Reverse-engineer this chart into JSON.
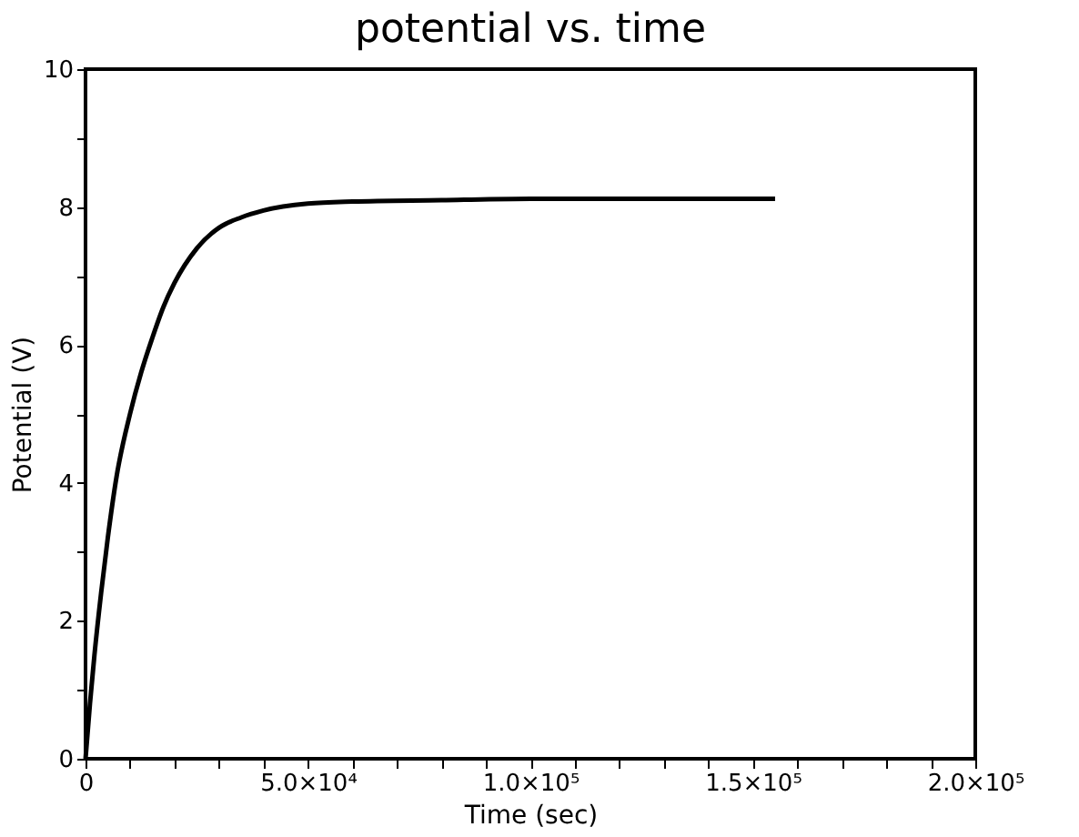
{
  "chart_data": {
    "type": "line",
    "title": "potential vs. time",
    "xlabel": "Time (sec)",
    "ylabel": "Potential (V)",
    "x": [
      0,
      1000,
      2000,
      3500,
      5000,
      7000,
      10000,
      12500,
      15000,
      17500,
      20000,
      25000,
      30000,
      35000,
      40000,
      50000,
      60000,
      80000,
      100000,
      130000,
      155000
    ],
    "series": [
      {
        "color": "#000000",
        "values": [
          0,
          0.8,
          1.5,
          2.4,
          3.2,
          4.1,
          5.0,
          5.6,
          6.1,
          6.55,
          6.9,
          7.4,
          7.7,
          7.85,
          7.95,
          8.05,
          8.08,
          8.1,
          8.12,
          8.12,
          8.12
        ]
      }
    ],
    "xlim": [
      0,
      200000
    ],
    "ylim": [
      0,
      10
    ],
    "xticks": [
      {
        "value": 0,
        "label": "0"
      },
      {
        "value": 10000,
        "label": null
      },
      {
        "value": 20000,
        "label": null
      },
      {
        "value": 30000,
        "label": null
      },
      {
        "value": 40000,
        "label": null
      },
      {
        "value": 50000,
        "label": "5.0×10⁴"
      },
      {
        "value": 60000,
        "label": null
      },
      {
        "value": 70000,
        "label": null
      },
      {
        "value": 80000,
        "label": null
      },
      {
        "value": 90000,
        "label": null
      },
      {
        "value": 100000,
        "label": "1.0×10⁵"
      },
      {
        "value": 110000,
        "label": null
      },
      {
        "value": 120000,
        "label": null
      },
      {
        "value": 130000,
        "label": null
      },
      {
        "value": 140000,
        "label": null
      },
      {
        "value": 150000,
        "label": "1.5×10⁵"
      },
      {
        "value": 160000,
        "label": null
      },
      {
        "value": 170000,
        "label": null
      },
      {
        "value": 180000,
        "label": null
      },
      {
        "value": 190000,
        "label": null
      },
      {
        "value": 200000,
        "label": "2.0×10⁵"
      }
    ],
    "yticks": [
      0,
      {
        "value": 1,
        "label": null
      },
      2,
      {
        "value": 3,
        "label": null
      },
      4,
      {
        "value": 5,
        "label": null
      },
      6,
      {
        "value": 7,
        "label": null
      },
      8,
      {
        "value": 9,
        "label": null
      },
      10
    ],
    "grid": false,
    "marker": "none",
    "line_style": "solid"
  }
}
